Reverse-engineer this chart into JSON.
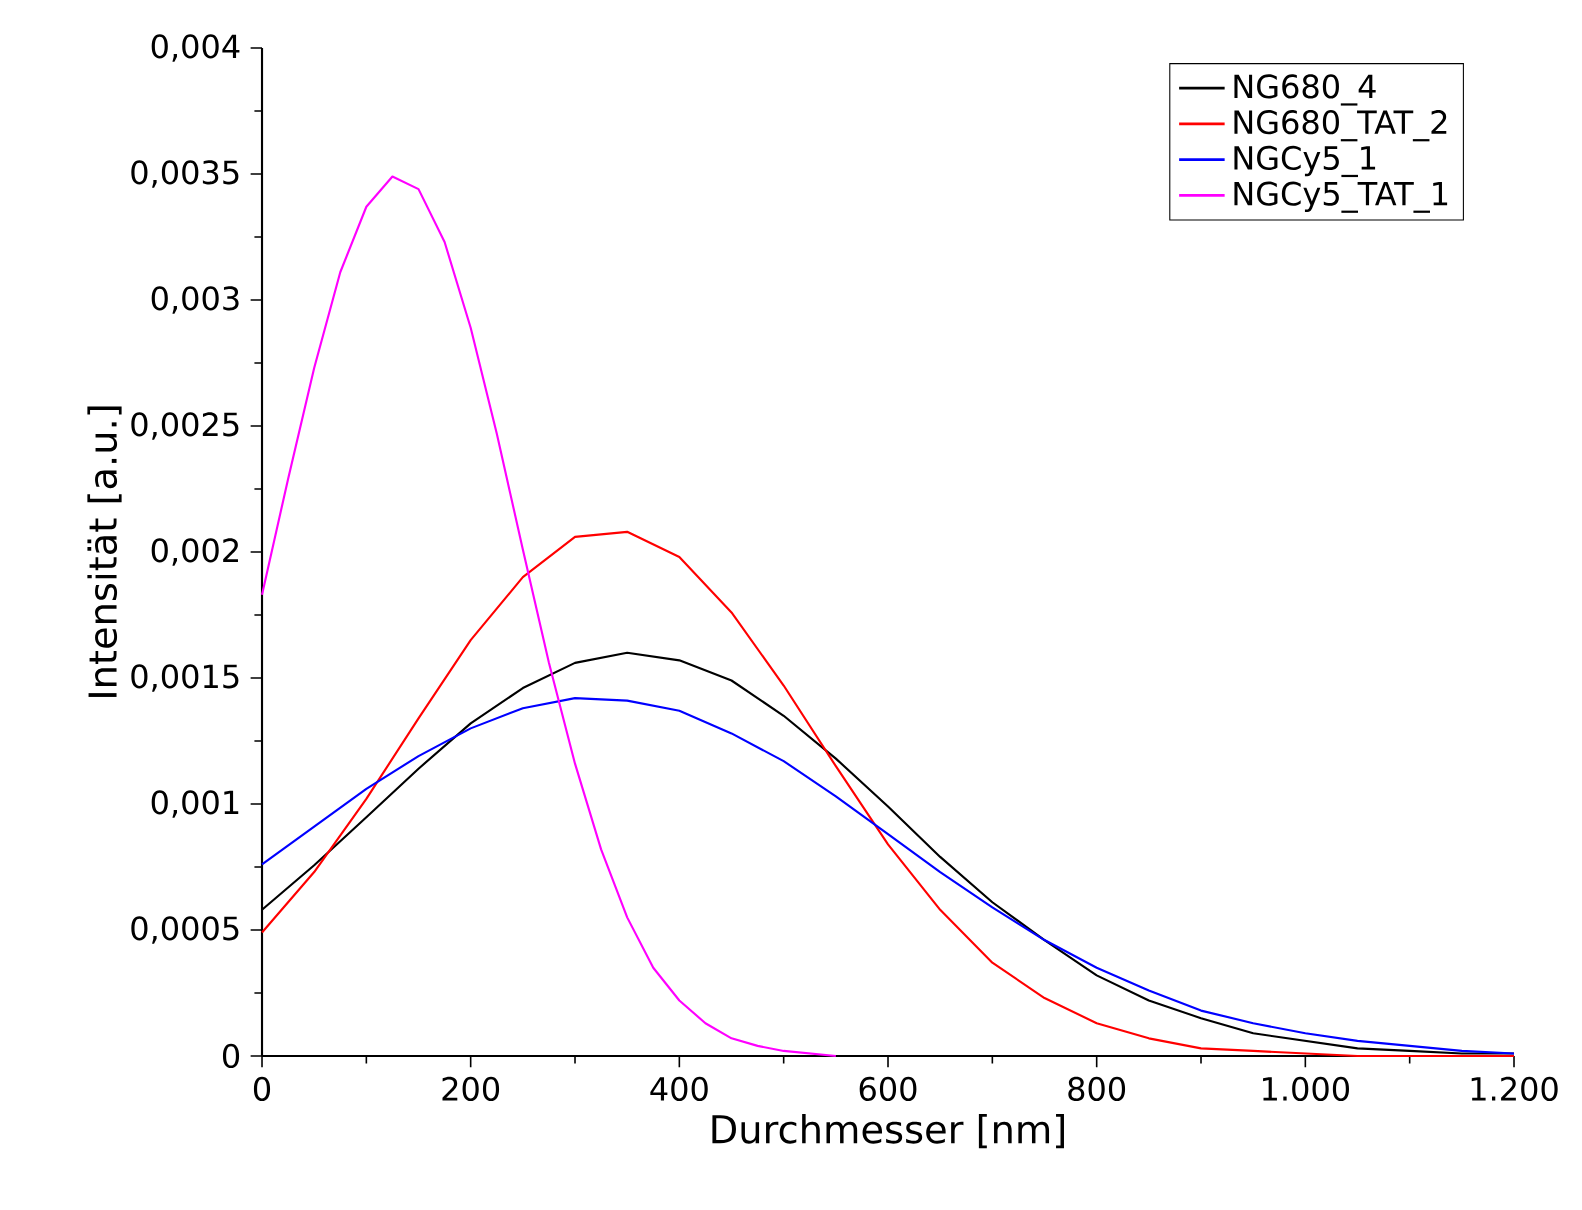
{
  "chart_data": {
    "type": "line",
    "xlabel": "Durchmesser [nm]",
    "ylabel": "Intensität [a.u.]",
    "x": [
      0,
      50,
      100,
      150,
      200,
      250,
      300,
      350,
      400,
      450,
      500,
      550,
      600,
      650,
      700,
      750,
      800,
      850,
      900,
      950,
      1000,
      1050,
      1100,
      1150,
      1200
    ],
    "series": [
      {
        "name": "NG680_4",
        "color": "#000000",
        "values": [
          0.00058,
          0.000757,
          0.000947,
          0.00114,
          0.00132,
          0.00146,
          0.00156,
          0.0016,
          0.00157,
          0.00149,
          0.00135,
          0.00118,
          0.00099,
          0.00079,
          0.00061,
          0.00046,
          0.00032,
          0.00022,
          0.00015,
          9e-05,
          6e-05,
          3e-05,
          2e-05,
          1e-05,
          1e-05
        ]
      },
      {
        "name": "NG680_TAT_2",
        "color": "#ff0000",
        "values": [
          0.00049,
          0.00073,
          0.00102,
          0.00134,
          0.00165,
          0.0019,
          0.00206,
          0.00208,
          0.00198,
          0.00176,
          0.00147,
          0.00115,
          0.00084,
          0.00058,
          0.00037,
          0.00023,
          0.00013,
          7e-05,
          3e-05,
          2e-05,
          1e-05,
          0,
          0,
          0,
          0
        ]
      },
      {
        "name": "NGCy5_1",
        "color": "#0000ff",
        "values": [
          0.00076,
          0.00091,
          0.00106,
          0.00119,
          0.0013,
          0.00138,
          0.00142,
          0.00141,
          0.00137,
          0.00128,
          0.00117,
          0.00103,
          0.00088,
          0.00073,
          0.00059,
          0.00046,
          0.00035,
          0.00026,
          0.00018,
          0.00013,
          9e-05,
          6e-05,
          4e-05,
          2e-05,
          1e-05
        ]
      },
      {
        "name": "NGCy5_TAT_1",
        "color": "#ff00ff",
        "x": [
          0,
          25,
          50,
          75,
          100,
          125,
          150,
          175,
          200,
          225,
          250,
          275,
          300,
          325,
          350,
          375,
          400,
          425,
          450,
          475,
          500,
          525,
          550
        ],
        "values": [
          0.00183,
          0.00229,
          0.00273,
          0.00311,
          0.00337,
          0.00349,
          0.00344,
          0.00323,
          0.00289,
          0.00247,
          0.00201,
          0.00156,
          0.00116,
          0.00082,
          0.00055,
          0.00035,
          0.00022,
          0.00013,
          7e-05,
          4e-05,
          2e-05,
          1e-05,
          0
        ]
      }
    ],
    "xlim": [
      0,
      1200
    ],
    "ylim": [
      0,
      0.004
    ],
    "xticks": [
      0,
      200,
      400,
      600,
      800,
      {
        "value": 1000,
        "label": "1.000"
      },
      {
        "value": 1200,
        "label": "1.200"
      }
    ],
    "yticks": [
      0,
      {
        "value": 0.0005,
        "label": "0,0005"
      },
      {
        "value": 0.001,
        "label": "0,001"
      },
      {
        "value": 0.0015,
        "label": "0,0015"
      },
      {
        "value": 0.002,
        "label": "0,002"
      },
      {
        "value": 0.0025,
        "label": "0,0025"
      },
      {
        "value": 0.003,
        "label": "0,003"
      },
      {
        "value": 0.0035,
        "label": "0,0035"
      },
      {
        "value": 0.004,
        "label": "0,004"
      }
    ],
    "legend": "top right",
    "grid": false
  }
}
